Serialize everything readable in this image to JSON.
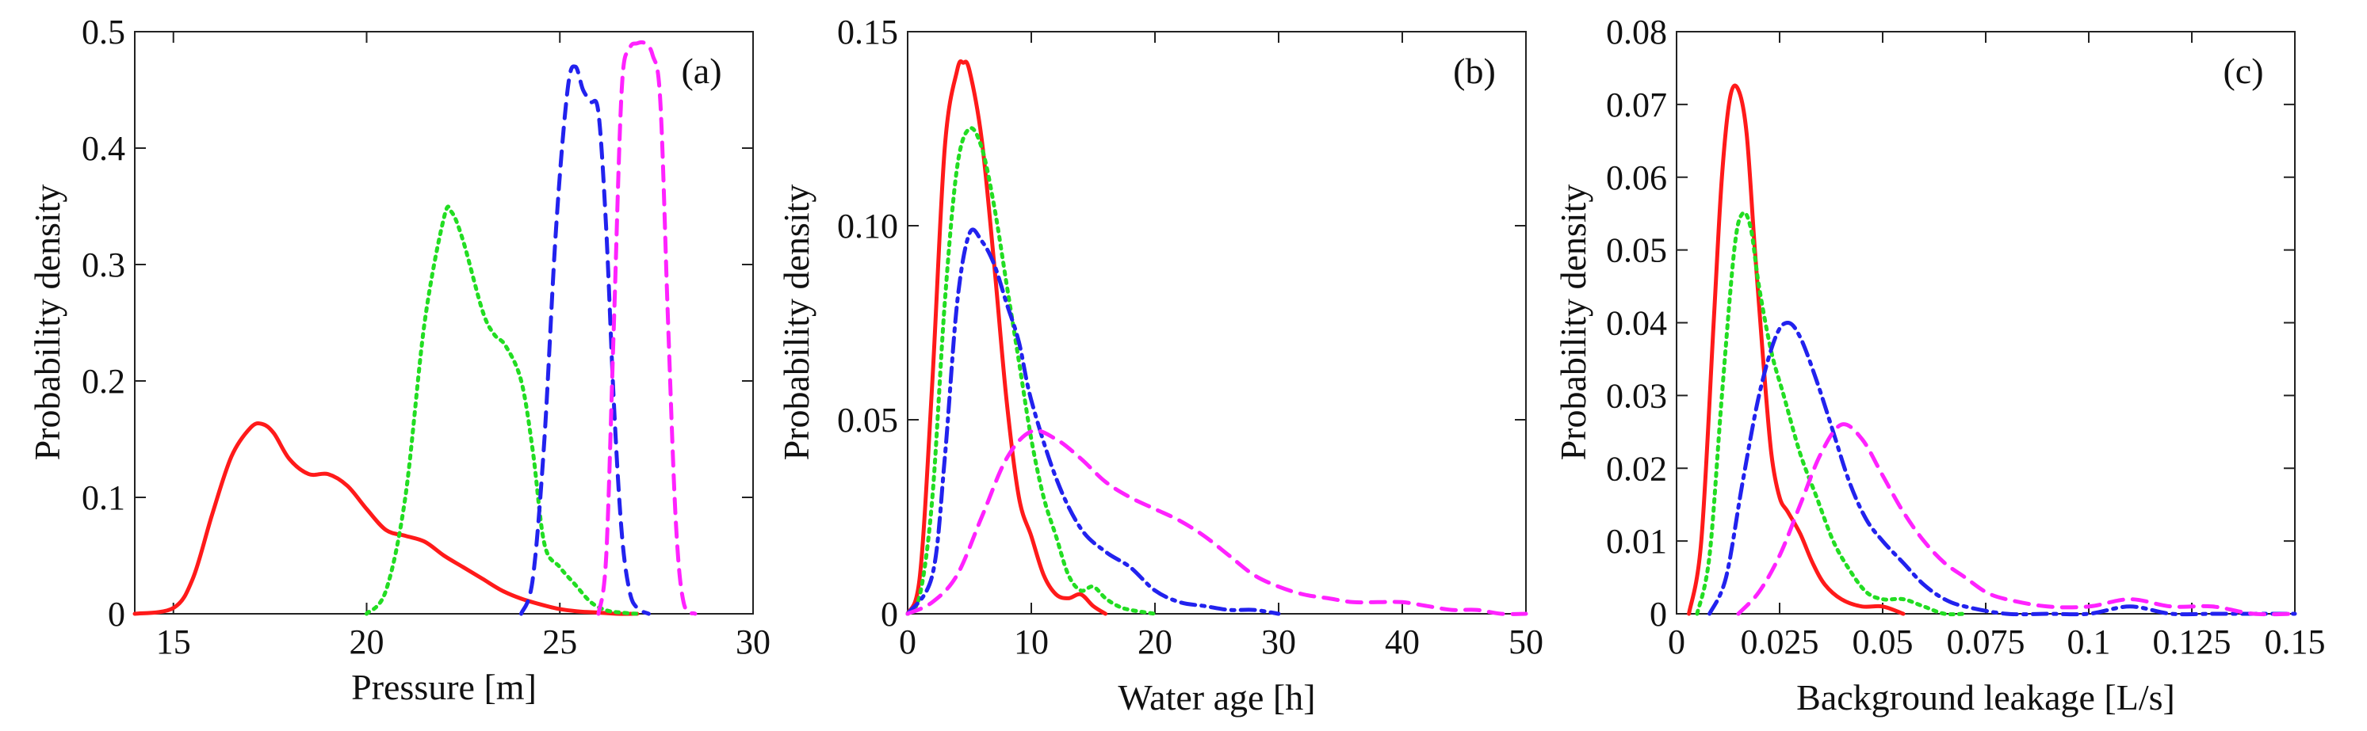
{
  "chart_data": [
    {
      "type": "line",
      "panel_label": "(a)",
      "xlabel": "Pressure [m]",
      "ylabel": "Probability density",
      "xlim": [
        14,
        30
      ],
      "ylim": [
        0,
        0.5
      ],
      "xticks": [
        15,
        20,
        25,
        30
      ],
      "xtick_labels": [
        "15",
        "20",
        "25",
        "30"
      ],
      "yticks": [
        0,
        0.1,
        0.2,
        0.3,
        0.4,
        0.5
      ],
      "ytick_labels": [
        "0",
        "0.1",
        "0.2",
        "0.3",
        "0.4",
        "0.5"
      ],
      "series": [
        {
          "name": "solid-red",
          "color": "#ff1a1a",
          "dash": "solid",
          "x": [
            14.0,
            15.0,
            15.5,
            16.0,
            16.5,
            17.0,
            17.3,
            17.6,
            18.0,
            18.5,
            19.0,
            19.5,
            20.0,
            20.5,
            21.0,
            21.5,
            22.0,
            22.5,
            23.0,
            23.5,
            24.0,
            24.5,
            25.0,
            25.5,
            26.0,
            26.5,
            27.0
          ],
          "y": [
            0.0,
            0.005,
            0.03,
            0.085,
            0.135,
            0.16,
            0.163,
            0.155,
            0.133,
            0.12,
            0.12,
            0.11,
            0.09,
            0.072,
            0.067,
            0.062,
            0.05,
            0.04,
            0.03,
            0.02,
            0.013,
            0.008,
            0.004,
            0.002,
            0.001,
            0.0,
            0.0
          ]
        },
        {
          "name": "dotted-green",
          "color": "#22dd22",
          "dash": "dotted",
          "x": [
            20.0,
            20.5,
            21.0,
            21.5,
            22.0,
            22.2,
            22.5,
            23.0,
            23.3,
            23.6,
            24.0,
            24.3,
            24.6,
            25.0,
            25.4,
            25.8,
            26.2,
            26.6,
            27.0
          ],
          "y": [
            0.0,
            0.02,
            0.1,
            0.25,
            0.34,
            0.345,
            0.32,
            0.26,
            0.24,
            0.23,
            0.2,
            0.14,
            0.06,
            0.04,
            0.025,
            0.01,
            0.003,
            0.001,
            0.0
          ]
        },
        {
          "name": "dashed-blue",
          "color": "#2222ee",
          "dash": "dashed",
          "x": [
            24.0,
            24.3,
            24.6,
            24.9,
            25.2,
            25.4,
            25.6,
            25.8,
            26.0,
            26.2,
            26.4,
            26.6,
            26.8,
            27.0,
            27.3
          ],
          "y": [
            0.0,
            0.03,
            0.15,
            0.33,
            0.45,
            0.47,
            0.45,
            0.44,
            0.43,
            0.33,
            0.18,
            0.07,
            0.02,
            0.005,
            0.0
          ]
        },
        {
          "name": "dashed-magenta",
          "color": "#ff22ff",
          "dash": "dashed",
          "x": [
            26.0,
            26.2,
            26.4,
            26.6,
            26.8,
            27.0,
            27.2,
            27.4,
            27.6,
            27.8,
            28.0,
            28.2,
            28.5
          ],
          "y": [
            0.0,
            0.05,
            0.25,
            0.45,
            0.485,
            0.49,
            0.49,
            0.48,
            0.44,
            0.25,
            0.08,
            0.01,
            0.0
          ]
        }
      ]
    },
    {
      "type": "line",
      "panel_label": "(b)",
      "xlabel": "Water age [h]",
      "ylabel": "Probability density",
      "xlim": [
        0,
        50
      ],
      "ylim": [
        0,
        0.15
      ],
      "xticks": [
        0,
        10,
        20,
        30,
        40,
        50
      ],
      "xtick_labels": [
        "0",
        "10",
        "20",
        "30",
        "40",
        "50"
      ],
      "yticks": [
        0,
        0.05,
        0.1,
        0.15
      ],
      "ytick_labels": [
        "0",
        "0.05",
        "0.10",
        "0.15"
      ],
      "series": [
        {
          "name": "solid-red",
          "color": "#ff1a1a",
          "dash": "solid",
          "x": [
            0.0,
            1.0,
            2.0,
            3.0,
            4.0,
            4.5,
            5.0,
            6.0,
            7.0,
            8.0,
            9.0,
            10.0,
            11.0,
            12.0,
            13.0,
            14.0,
            15.0,
            16.0
          ],
          "y": [
            0.0,
            0.01,
            0.06,
            0.12,
            0.14,
            0.142,
            0.14,
            0.122,
            0.09,
            0.055,
            0.03,
            0.02,
            0.01,
            0.005,
            0.004,
            0.005,
            0.002,
            0.0
          ]
        },
        {
          "name": "dotted-green",
          "color": "#22dd22",
          "dash": "dotted",
          "x": [
            0.0,
            1.0,
            2.0,
            3.0,
            4.0,
            5.0,
            6.0,
            7.0,
            8.0,
            9.0,
            10.0,
            11.0,
            12.0,
            13.0,
            14.0,
            15.0,
            16.0,
            17.0,
            18.0,
            20.0
          ],
          "y": [
            0.0,
            0.005,
            0.03,
            0.08,
            0.115,
            0.125,
            0.12,
            0.105,
            0.085,
            0.065,
            0.045,
            0.03,
            0.02,
            0.01,
            0.006,
            0.007,
            0.004,
            0.002,
            0.001,
            0.0
          ]
        },
        {
          "name": "dash-dot-blue",
          "color": "#2222ee",
          "dash": "dashdot",
          "x": [
            0.0,
            2.0,
            3.0,
            4.0,
            5.0,
            6.0,
            7.0,
            8.0,
            9.0,
            10.0,
            12.0,
            14.0,
            16.0,
            18.0,
            20.0,
            22.0,
            24.0,
            26.0,
            28.0,
            30.0
          ],
          "y": [
            0.0,
            0.01,
            0.04,
            0.08,
            0.098,
            0.096,
            0.09,
            0.08,
            0.07,
            0.055,
            0.035,
            0.022,
            0.016,
            0.012,
            0.006,
            0.003,
            0.002,
            0.001,
            0.001,
            0.0
          ]
        },
        {
          "name": "dashed-magenta",
          "color": "#ff22ff",
          "dash": "dashed",
          "x": [
            0.0,
            2.0,
            4.0,
            6.0,
            8.0,
            10.0,
            12.0,
            14.0,
            16.0,
            18.0,
            20.0,
            22.0,
            24.0,
            26.0,
            28.0,
            30.0,
            32.0,
            34.0,
            36.0,
            38.0,
            40.0,
            42.0,
            44.0,
            46.0,
            48.0,
            50.0
          ],
          "y": [
            0.0,
            0.003,
            0.01,
            0.025,
            0.04,
            0.047,
            0.045,
            0.04,
            0.034,
            0.03,
            0.027,
            0.024,
            0.02,
            0.015,
            0.01,
            0.007,
            0.005,
            0.004,
            0.003,
            0.003,
            0.003,
            0.002,
            0.001,
            0.001,
            0.0,
            0.0
          ]
        }
      ]
    },
    {
      "type": "line",
      "panel_label": "(c)",
      "xlabel": "Background leakage [L/s]",
      "ylabel": "Probability density",
      "xlim": [
        0,
        0.15
      ],
      "ylim": [
        0,
        0.08
      ],
      "xticks": [
        0,
        0.025,
        0.05,
        0.075,
        0.1,
        0.125,
        0.15
      ],
      "xtick_labels": [
        "0",
        "0.025",
        "0.05",
        "0.075",
        "0.1",
        "0.125",
        "0.15"
      ],
      "yticks": [
        0,
        0.01,
        0.02,
        0.03,
        0.04,
        0.05,
        0.06,
        0.07,
        0.08
      ],
      "ytick_labels": [
        "0",
        "0.01",
        "0.02",
        "0.03",
        "0.04",
        "0.05",
        "0.06",
        "0.07",
        "0.08"
      ],
      "series": [
        {
          "name": "solid-red",
          "color": "#ff1a1a",
          "dash": "solid",
          "x": [
            0.003,
            0.006,
            0.009,
            0.011,
            0.013,
            0.015,
            0.017,
            0.019,
            0.021,
            0.023,
            0.025,
            0.027,
            0.03,
            0.033,
            0.036,
            0.04,
            0.045,
            0.05,
            0.055
          ],
          "y": [
            0.0,
            0.01,
            0.04,
            0.06,
            0.071,
            0.072,
            0.066,
            0.05,
            0.035,
            0.022,
            0.016,
            0.014,
            0.011,
            0.007,
            0.004,
            0.002,
            0.001,
            0.001,
            0.0
          ]
        },
        {
          "name": "dotted-green",
          "color": "#22dd22",
          "dash": "dotted",
          "x": [
            0.005,
            0.008,
            0.011,
            0.014,
            0.016,
            0.018,
            0.02,
            0.023,
            0.026,
            0.03,
            0.034,
            0.038,
            0.042,
            0.046,
            0.05,
            0.055,
            0.06,
            0.065,
            0.07
          ],
          "y": [
            0.0,
            0.008,
            0.03,
            0.05,
            0.055,
            0.053,
            0.045,
            0.036,
            0.03,
            0.022,
            0.016,
            0.01,
            0.006,
            0.003,
            0.002,
            0.002,
            0.001,
            0.0,
            0.0
          ]
        },
        {
          "name": "dash-dot-blue",
          "color": "#2222ee",
          "dash": "dashdot",
          "x": [
            0.008,
            0.012,
            0.016,
            0.02,
            0.024,
            0.027,
            0.03,
            0.034,
            0.038,
            0.042,
            0.046,
            0.05,
            0.055,
            0.06,
            0.065,
            0.07,
            0.08,
            0.09,
            0.1,
            0.11,
            0.12,
            0.13,
            0.14,
            0.15
          ],
          "y": [
            0.0,
            0.005,
            0.018,
            0.03,
            0.038,
            0.04,
            0.038,
            0.032,
            0.025,
            0.018,
            0.013,
            0.01,
            0.007,
            0.004,
            0.002,
            0.001,
            0.0,
            0.0,
            0.0,
            0.001,
            0.0,
            0.0,
            0.0,
            0.0
          ]
        },
        {
          "name": "dashed-magenta",
          "color": "#ff22ff",
          "dash": "dashed",
          "x": [
            0.015,
            0.02,
            0.025,
            0.03,
            0.035,
            0.04,
            0.045,
            0.05,
            0.055,
            0.06,
            0.065,
            0.07,
            0.075,
            0.08,
            0.09,
            0.1,
            0.11,
            0.12,
            0.13,
            0.14,
            0.15
          ],
          "y": [
            0.0,
            0.003,
            0.008,
            0.015,
            0.022,
            0.026,
            0.024,
            0.019,
            0.014,
            0.01,
            0.007,
            0.005,
            0.003,
            0.002,
            0.001,
            0.001,
            0.002,
            0.001,
            0.001,
            0.0,
            0.0
          ]
        }
      ]
    }
  ]
}
